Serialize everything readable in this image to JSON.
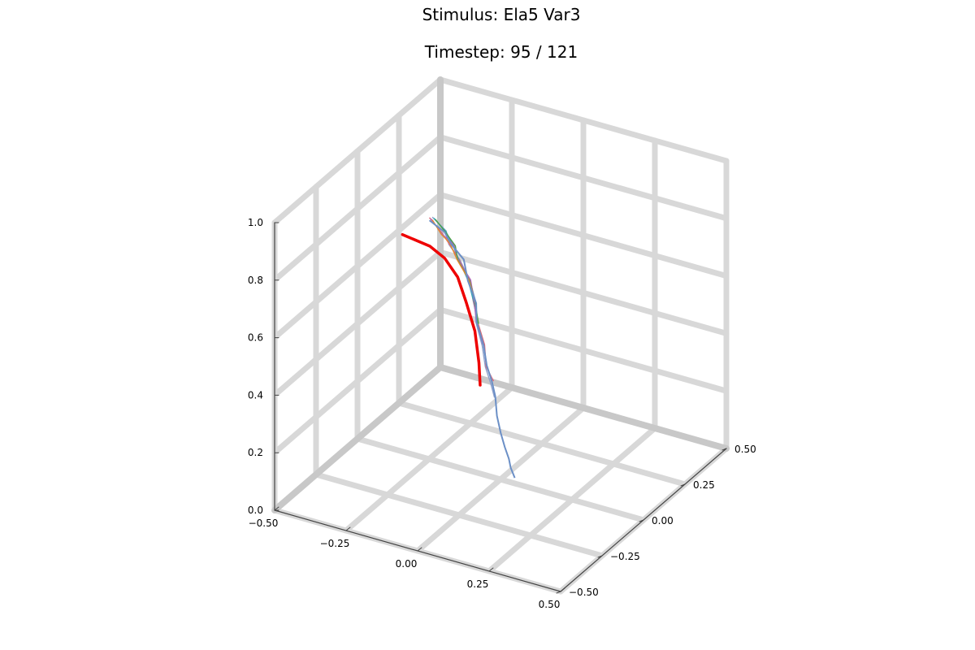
{
  "chart_data": {
    "type": "line3d",
    "title": "Stimulus: Ela5 Var3",
    "subtitle": "Timestep: 95 / 121",
    "xlim": [
      -0.5,
      0.5
    ],
    "ylim": [
      -0.5,
      0.5
    ],
    "zlim": [
      0.0,
      1.0
    ],
    "x_ticks": [
      "−0.50",
      "−0.25",
      "0.00",
      "0.25",
      "0.50"
    ],
    "y_ticks": [
      "−0.50",
      "−0.25",
      "0.00",
      "0.25",
      "0.50"
    ],
    "z_ticks": [
      "0.0",
      "0.2",
      "0.4",
      "0.6",
      "0.8",
      "1.0"
    ],
    "x_tick_values": [
      -0.5,
      -0.25,
      0.0,
      0.25,
      0.5
    ],
    "y_tick_values": [
      -0.5,
      -0.25,
      0.0,
      0.25,
      0.5
    ],
    "z_tick_values": [
      0.0,
      0.2,
      0.4,
      0.6,
      0.8,
      1.0
    ],
    "grid": true,
    "legend": false,
    "colors": {
      "reference": "#ee0000",
      "grid": "#d8d8d8",
      "axis": "#c8c8c8",
      "series": [
        "#6b8fc6",
        "#e38a2e",
        "#4f9e4a",
        "#b565b8",
        "#2aa9b4",
        "#d9697a",
        "#8da0cb"
      ]
    },
    "series": [
      {
        "role": "reference",
        "points": [
          [
            -0.25,
            -0.16,
            0.86
          ],
          [
            -0.16,
            -0.15,
            0.84
          ],
          [
            -0.12,
            -0.13,
            0.8
          ],
          [
            -0.08,
            -0.12,
            0.74
          ],
          [
            -0.05,
            -0.12,
            0.66
          ],
          [
            -0.02,
            -0.12,
            0.57
          ],
          [
            0.0,
            -0.13,
            0.47
          ],
          [
            0.01,
            -0.14,
            0.4
          ]
        ]
      },
      {
        "role": "trajectory",
        "points": [
          [
            0.05,
            0.0,
            0.02
          ],
          [
            0.04,
            0.0,
            0.05
          ],
          [
            0.03,
            0.0,
            0.08
          ],
          [
            0.02,
            0.0,
            0.12
          ],
          [
            0.0,
            0.0,
            0.16
          ],
          [
            -0.01,
            0.0,
            0.22
          ],
          [
            -0.02,
            0.0,
            0.28
          ],
          [
            -0.03,
            0.0,
            0.33
          ],
          [
            -0.05,
            0.0,
            0.38
          ],
          [
            -0.06,
            0.0,
            0.45
          ],
          [
            -0.08,
            0.0,
            0.52
          ],
          [
            -0.09,
            0.0,
            0.59
          ],
          [
            -0.11,
            0.0,
            0.66
          ],
          [
            -0.14,
            0.0,
            0.72
          ],
          [
            -0.17,
            0.0,
            0.77
          ],
          [
            -0.2,
            0.0,
            0.8
          ],
          [
            -0.24,
            0.0,
            0.84
          ]
        ]
      }
    ]
  }
}
